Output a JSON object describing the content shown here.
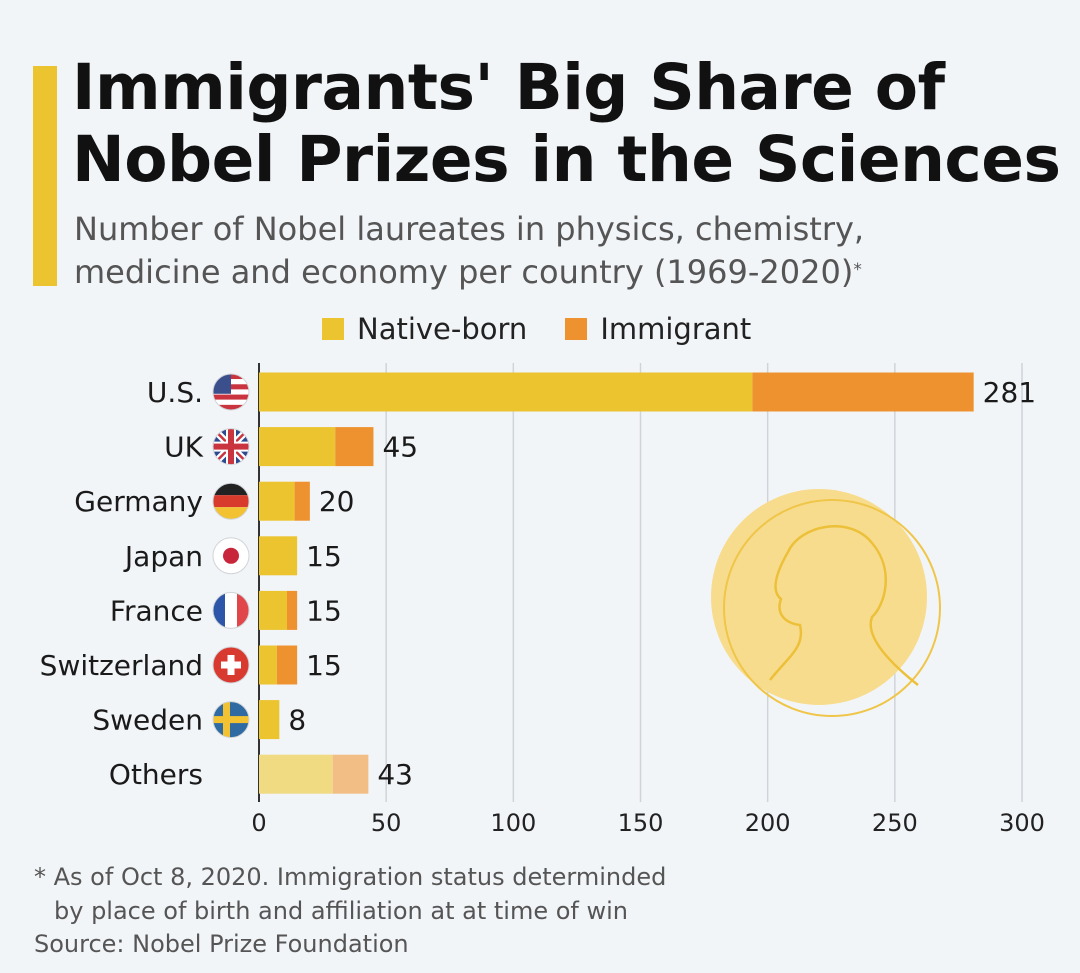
{
  "title_line1": "Immigrants' Big Share of",
  "title_line2": "Nobel Prizes in the Sciences",
  "subtitle_line1": "Number of Nobel laureates in physics, chemistry,",
  "subtitle_line2": "medicine and economy per country (1969-2020)",
  "subtitle_marker": "*",
  "legend": [
    {
      "label": "Native-born",
      "color": "#ecc42f"
    },
    {
      "label": "Immigrant",
      "color": "#ee922f"
    }
  ],
  "chart_data": {
    "type": "bar",
    "orientation": "horizontal",
    "stacked": true,
    "categories": [
      "U.S.",
      "UK",
      "Germany",
      "Japan",
      "France",
      "Switzerland",
      "Sweden",
      "Others"
    ],
    "flag_icons": [
      "us-flag-icon",
      "uk-flag-icon",
      "germany-flag-icon",
      "japan-flag-icon",
      "france-flag-icon",
      "switzerland-flag-icon",
      "sweden-flag-icon",
      null
    ],
    "series": [
      {
        "name": "Native-born",
        "values": [
          194,
          30,
          14,
          15,
          11,
          7,
          8,
          29
        ],
        "color": "#ecc42f"
      },
      {
        "name": "Immigrant",
        "values": [
          87,
          15,
          6,
          0,
          4,
          8,
          0,
          14
        ],
        "color": "#ee922f"
      }
    ],
    "totals": [
      "281",
      "45",
      "20",
      "15",
      "15",
      "15",
      "8",
      "43"
    ],
    "others_colors": [
      "#f0da82",
      "#f3bd86"
    ],
    "xlim": [
      0,
      300
    ],
    "xticks": [
      0,
      50,
      100,
      150,
      200,
      250,
      300
    ],
    "xtick_labels": [
      "0",
      "50",
      "100",
      "150",
      "200",
      "250",
      "300"
    ],
    "grid": true,
    "legend_position": "top"
  },
  "footnote_line1": "* As of Oct 8, 2020. Immigration status determinded",
  "footnote_line2": "by place of birth and affiliation at at time of win",
  "source": "Source: Nobel Prize Foundation"
}
